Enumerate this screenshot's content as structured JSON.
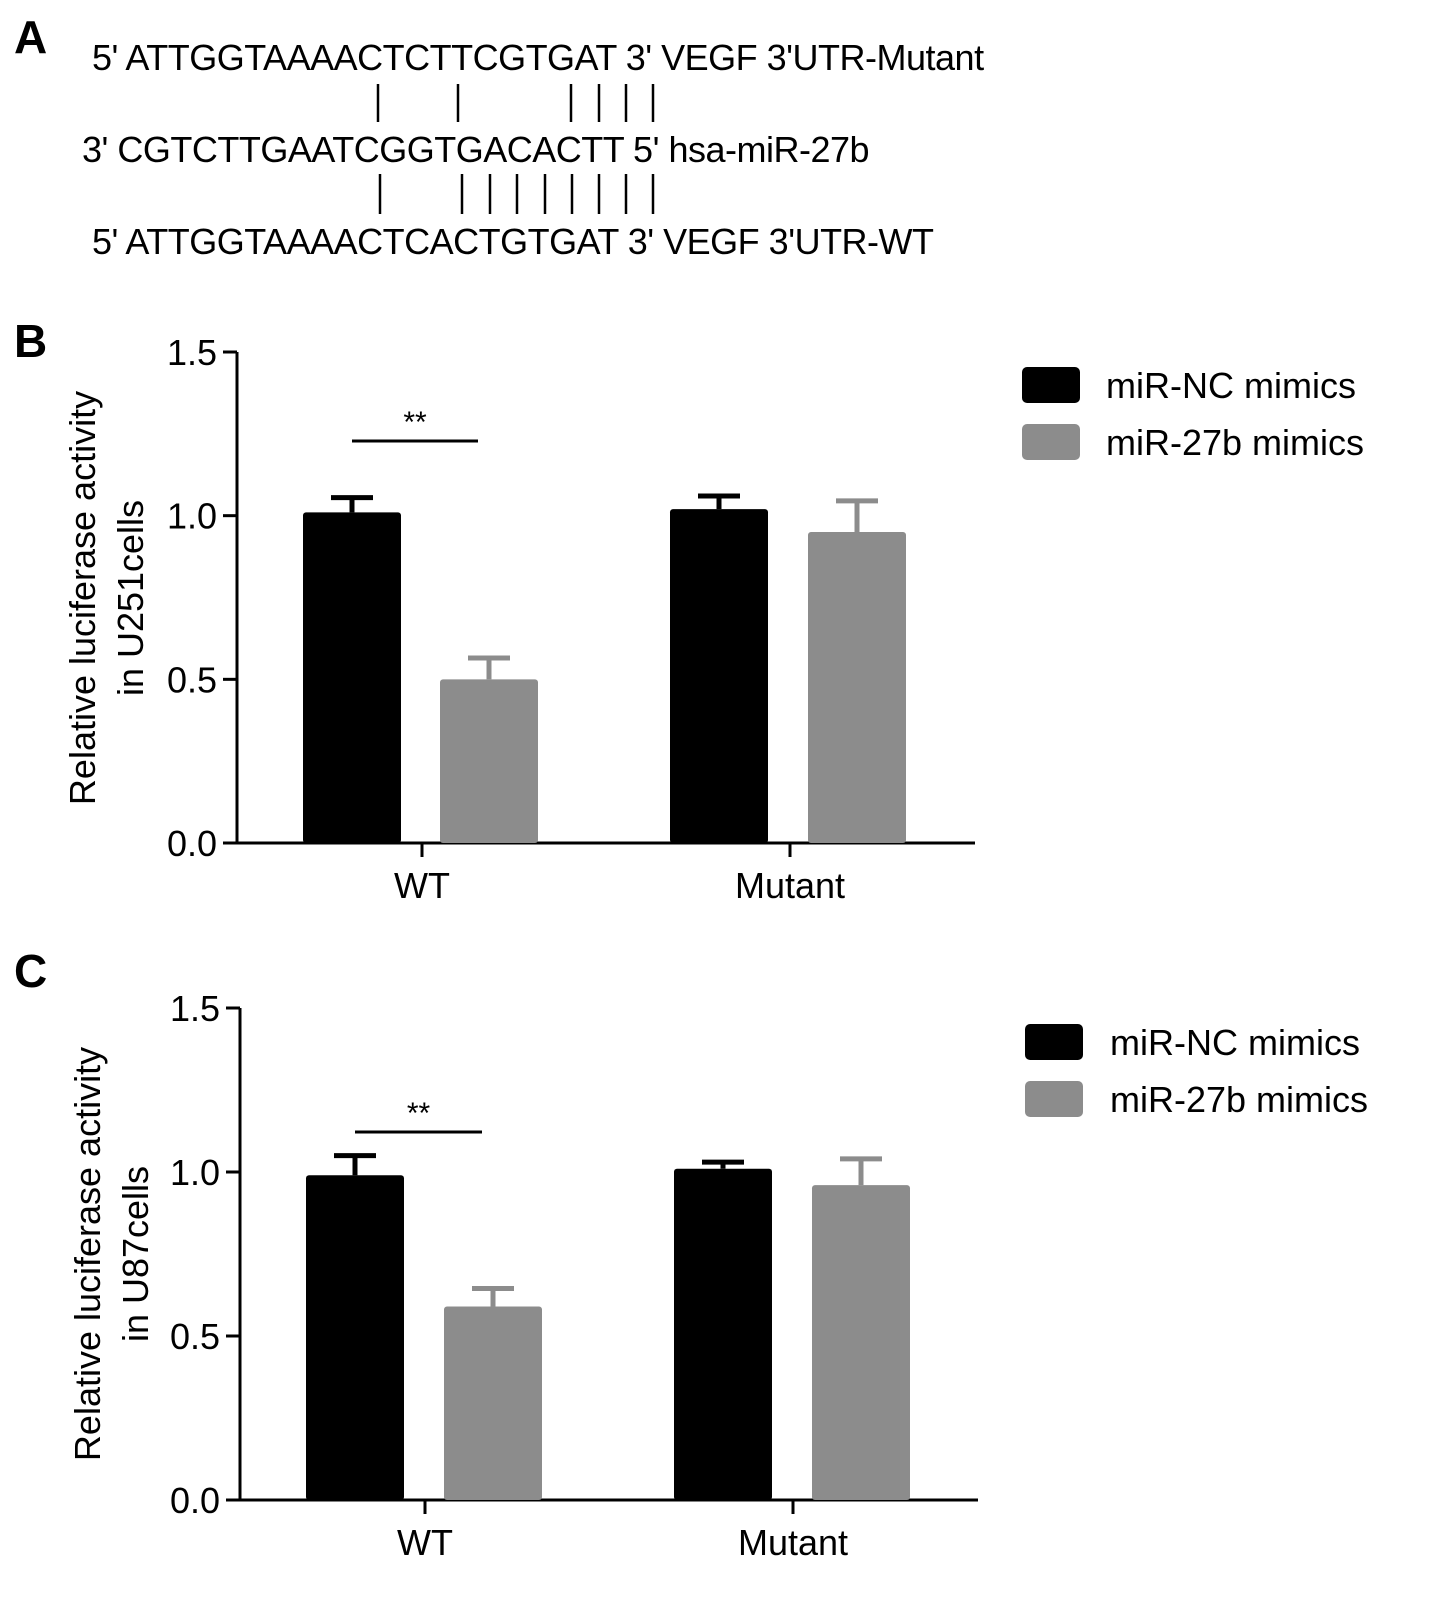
{
  "panel_a": {
    "letter": "A",
    "mutant_seq": "5' ATTGGTAAAACTCTTCGTGAT 3' VEGF 3'UTR-Mutant",
    "mirna_seq": "3' CGTCTTGAATCGGTGACACTT 5' hsa-miR-27b",
    "wt_seq": "5' ATTGGTAAAACTCACTGTGAT 3' VEGF 3'UTR-WT"
  },
  "panel_b": {
    "letter": "B"
  },
  "panel_c": {
    "letter": "C"
  },
  "colors": {
    "nc": "#000000",
    "mir27b": "#8c8c8c"
  },
  "chart_data": [
    {
      "type": "bar",
      "panel": "B",
      "categories": [
        "WT",
        "Mutant"
      ],
      "series": [
        {
          "name": "miR-NC mimics",
          "values": [
            1.01,
            1.02
          ],
          "errors": [
            0.045,
            0.04
          ]
        },
        {
          "name": "miR-27b mimics",
          "values": [
            0.5,
            0.95
          ],
          "errors": [
            0.065,
            0.095
          ]
        }
      ],
      "ylabel": [
        "Relative luciferase activity",
        "in U251cells"
      ],
      "ylim": [
        0,
        1.5
      ],
      "yticks": [
        "0.0",
        "0.5",
        "1.0",
        "1.5"
      ],
      "significance": {
        "category": "WT",
        "label": "**"
      },
      "legend_position": "top-right"
    },
    {
      "type": "bar",
      "panel": "C",
      "categories": [
        "WT",
        "Mutant"
      ],
      "series": [
        {
          "name": "miR-NC mimics",
          "values": [
            0.99,
            1.01
          ],
          "errors": [
            0.06,
            0.02
          ]
        },
        {
          "name": "miR-27b mimics",
          "values": [
            0.59,
            0.96
          ],
          "errors": [
            0.055,
            0.08
          ]
        }
      ],
      "ylabel": [
        "Relative luciferase activity",
        "in U87cells"
      ],
      "ylim": [
        0,
        1.5
      ],
      "yticks": [
        "0.0",
        "0.5",
        "1.0",
        "1.5"
      ],
      "significance": {
        "category": "WT",
        "label": "**"
      },
      "legend_position": "top-right"
    }
  ]
}
